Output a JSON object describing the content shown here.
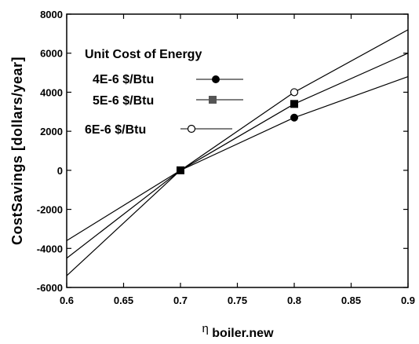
{
  "chart_data": {
    "type": "line",
    "xlabel": "η",
    "xlabel_sub": "boiler.new",
    "ylabel": "CostSavings  [dollars/year]",
    "xlim": [
      0.6,
      0.9
    ],
    "ylim": [
      -6000,
      8000
    ],
    "x_ticks": [
      "0.6",
      "0.65",
      "0.7",
      "0.75",
      "0.8",
      "0.85",
      "0.9"
    ],
    "y_ticks": [
      "-6000",
      "-4000",
      "-2000",
      "0",
      "2000",
      "4000",
      "6000",
      "8000"
    ],
    "grid": false,
    "legend": {
      "title": "Unit Cost of Energy",
      "placement": "top-left",
      "entries": [
        {
          "label": "4E-6 $/Btu",
          "marker": "filled-circle"
        },
        {
          "label": "5E-6 $/Btu",
          "marker": "filled-square"
        },
        {
          "label": "6E-6 $/Btu",
          "marker": "open-circle"
        }
      ]
    },
    "series": [
      {
        "name": "4E-6 $/Btu",
        "marker": "filled-circle",
        "x": [
          0.6,
          0.7,
          0.8,
          0.9
        ],
        "y": [
          -3600,
          0,
          2700,
          4800
        ]
      },
      {
        "name": "5E-6 $/Btu",
        "marker": "filled-square",
        "x": [
          0.6,
          0.7,
          0.8,
          0.9
        ],
        "y": [
          -4500,
          0,
          3400,
          6000
        ]
      },
      {
        "name": "6E-6 $/Btu",
        "marker": "open-circle",
        "x": [
          0.6,
          0.7,
          0.8,
          0.9
        ],
        "y": [
          -5400,
          0,
          4000,
          7200
        ]
      }
    ],
    "markers": [
      {
        "series": "4E-6 $/Btu",
        "marker": "filled-circle",
        "x": 0.8,
        "y": 2700
      },
      {
        "series": "5E-6 $/Btu",
        "marker": "filled-square",
        "x": 0.8,
        "y": 3400
      },
      {
        "series": "6E-6 $/Btu",
        "marker": "open-circle",
        "x": 0.8,
        "y": 4000
      },
      {
        "series": "5E-6 $/Btu",
        "marker": "filled-square",
        "x": 0.7,
        "y": 0
      }
    ],
    "colors": {
      "line": "#000000",
      "square_marker": "#555555"
    }
  }
}
